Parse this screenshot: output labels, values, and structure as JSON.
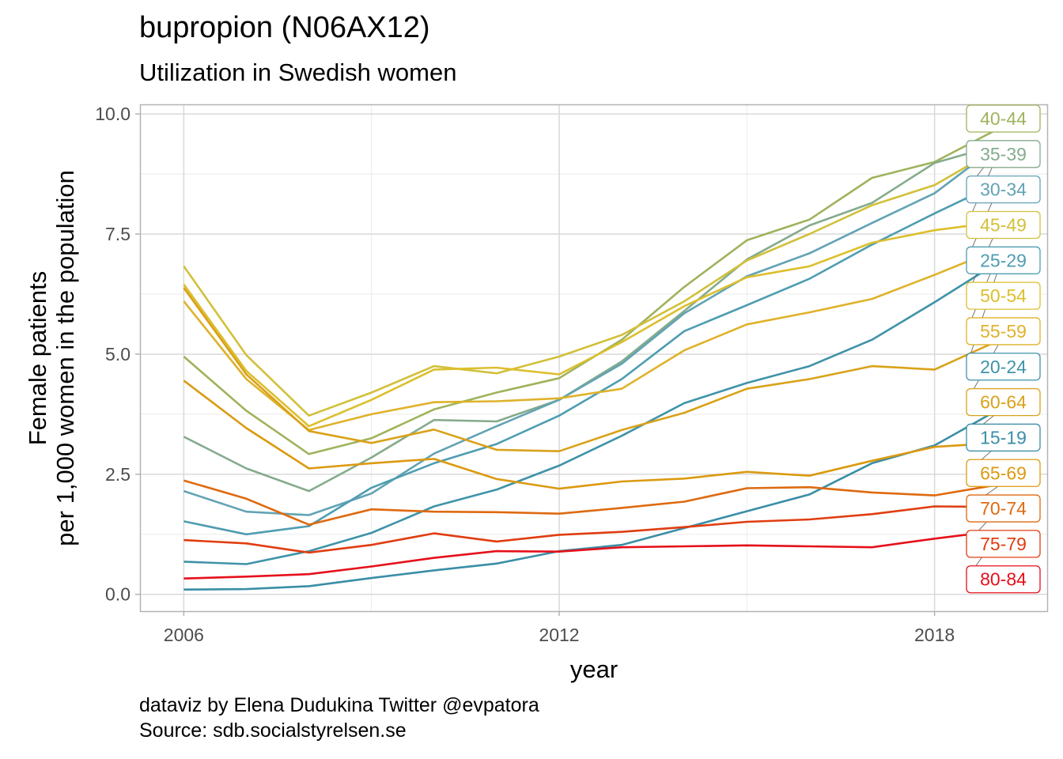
{
  "chart_data": {
    "type": "line",
    "title": "bupropion (N06AX12)",
    "subtitle": "Utilization in Swedish women",
    "xlabel": "year",
    "ylabel_lines": [
      "Female patients",
      "per 1,000 women in the population"
    ],
    "caption_lines": [
      "dataviz by Elena Dudukina Twitter @evpatora",
      "Source: sdb.socialstyrelsen.se"
    ],
    "x": [
      2006,
      2007,
      2008,
      2009,
      2010,
      2011,
      2012,
      2013,
      2014,
      2015,
      2016,
      2017,
      2018,
      2019
    ],
    "xlim": [
      2005.3,
      2019.8
    ],
    "ylim": [
      -0.35,
      10.2
    ],
    "xticks": [
      {
        "value": 2006,
        "label": "2006"
      },
      {
        "value": 2012,
        "label": "2012"
      },
      {
        "value": 2018,
        "label": "2018"
      }
    ],
    "yticks": [
      {
        "value": 0,
        "label": "0.0"
      },
      {
        "value": 2.5,
        "label": "2.5"
      },
      {
        "value": 5,
        "label": "5.0"
      },
      {
        "value": 7.5,
        "label": "7.5"
      },
      {
        "value": 10,
        "label": "10.0"
      }
    ],
    "grid": true,
    "legend": "direct labels at right, ordered by final value",
    "series": [
      {
        "name": "40-44",
        "color": "#9fb35c",
        "values": [
          4.95,
          3.82,
          2.92,
          3.25,
          3.85,
          4.2,
          4.5,
          5.3,
          6.4,
          7.37,
          7.8,
          8.67,
          9.0,
          9.68
        ]
      },
      {
        "name": "35-39",
        "color": "#85ab8c",
        "values": [
          3.28,
          2.62,
          2.15,
          2.85,
          3.63,
          3.6,
          4.05,
          4.85,
          5.9,
          6.97,
          7.68,
          8.15,
          8.98,
          9.35
        ]
      },
      {
        "name": "30-34",
        "color": "#62a3b4",
        "values": [
          2.15,
          1.72,
          1.65,
          2.1,
          2.93,
          3.5,
          4.05,
          4.8,
          5.85,
          6.62,
          7.1,
          7.73,
          8.35,
          9.33
        ]
      },
      {
        "name": "45-49",
        "color": "#d2c03a",
        "values": [
          6.83,
          4.98,
          3.72,
          4.2,
          4.75,
          4.6,
          4.95,
          5.4,
          6.1,
          6.95,
          7.5,
          8.1,
          8.52,
          9.27
        ]
      },
      {
        "name": "25-29",
        "color": "#4e9db1",
        "values": [
          1.52,
          1.25,
          1.42,
          2.22,
          2.73,
          3.13,
          3.72,
          4.48,
          5.48,
          6.02,
          6.57,
          7.28,
          7.93,
          8.55
        ]
      },
      {
        "name": "50-54",
        "color": "#dcbf2c",
        "values": [
          6.45,
          4.65,
          3.5,
          4.05,
          4.68,
          4.72,
          4.58,
          5.25,
          6.0,
          6.6,
          6.83,
          7.32,
          7.58,
          7.75
        ]
      },
      {
        "name": "55-59",
        "color": "#dfb22a",
        "values": [
          6.1,
          4.48,
          3.42,
          3.75,
          4.0,
          4.02,
          4.08,
          4.28,
          5.08,
          5.62,
          5.87,
          6.15,
          6.65,
          7.18
        ]
      },
      {
        "name": "20-24",
        "color": "#3f93a9",
        "values": [
          0.68,
          0.63,
          0.9,
          1.28,
          1.83,
          2.18,
          2.68,
          3.3,
          3.98,
          4.4,
          4.75,
          5.3,
          6.08,
          6.9
        ]
      },
      {
        "name": "60-64",
        "color": "#d9a21a",
        "values": [
          6.38,
          4.58,
          3.4,
          3.15,
          3.43,
          3.01,
          2.98,
          3.42,
          3.78,
          4.28,
          4.48,
          4.75,
          4.68,
          5.27
        ]
      },
      {
        "name": "15-19",
        "color": "#3a8ea6",
        "values": [
          0.1,
          0.11,
          0.17,
          0.34,
          0.5,
          0.64,
          0.9,
          1.03,
          1.38,
          1.73,
          2.08,
          2.73,
          3.1,
          3.83
        ]
      },
      {
        "name": "65-69",
        "color": "#db9a11",
        "values": [
          4.45,
          3.46,
          2.62,
          2.73,
          2.82,
          2.4,
          2.2,
          2.35,
          2.41,
          2.55,
          2.47,
          2.78,
          3.07,
          3.15
        ]
      },
      {
        "name": "70-74",
        "color": "#de6a10",
        "values": [
          2.37,
          1.99,
          1.45,
          1.77,
          1.72,
          1.71,
          1.68,
          1.8,
          1.93,
          2.21,
          2.23,
          2.12,
          2.06,
          2.28
        ]
      },
      {
        "name": "75-79",
        "color": "#e03d10",
        "values": [
          1.13,
          1.06,
          0.87,
          1.03,
          1.27,
          1.1,
          1.24,
          1.3,
          1.4,
          1.51,
          1.56,
          1.67,
          1.83,
          1.82
        ]
      },
      {
        "name": "80-84",
        "color": "#e5101a",
        "values": [
          0.33,
          0.37,
          0.42,
          0.58,
          0.76,
          0.9,
          0.89,
          0.98,
          1.0,
          1.02,
          1.0,
          0.98,
          1.16,
          1.32
        ]
      }
    ]
  }
}
